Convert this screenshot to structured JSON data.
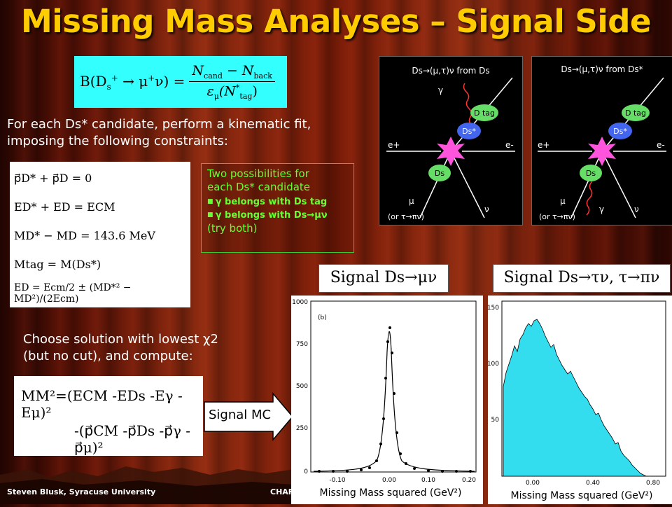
{
  "slide": {
    "title": "Missing Mass Analyses – Signal Side",
    "intro_line1": "For each Ds* candidate, perform a kinematic fit,",
    "intro_line2": "imposing the following constraints:",
    "choose_line1": "Choose solution with lowest χ2",
    "choose_line2": "(but no cut), and compute:",
    "signal_mc_label": "Signal MC",
    "footer_left": "Steven Blusk, Syracuse University",
    "footer_mid": "CHAF"
  },
  "branching_formula": {
    "lhs": "B(D",
    "lhs_tail": "→ μ",
    "numerator": "N",
    "numerator_sub1": "cand",
    "numerator_minus": " − N",
    "numerator_sub2": "back",
    "denominator": "ε",
    "denominator_sub": "μ",
    "denominator_tail": "(N",
    "denominator_tail_sub": "tag"
  },
  "constraints": {
    "lines": [
      "p⃗D* + p⃗D = 0",
      "ED* + ED = ECM",
      "MD* − MD = 143.6 MeV",
      "Mtag = M(Ds*)",
      "ED = Ecm/2 ± (MD*² − MD²)/(2Ecm)"
    ]
  },
  "possibilities": {
    "line1": "Two possibilities for",
    "line2": "each Ds* candidate",
    "items": [
      "γ belongs with Ds tag",
      "γ belongs with Ds→μν"
    ],
    "footnote": "(try both)"
  },
  "missing_mass": {
    "line1": "MM²=(ECM -EDs -Eγ -Eμ)²",
    "line2": "-(p⃗CM -p⃗Ds -p⃗γ -p⃗μ)²"
  },
  "diagrams": [
    {
      "title": "Ds→(μ,τ)ν from Ds",
      "gamma_side": "top"
    },
    {
      "title": "Ds→(μ,τ)ν from Ds*",
      "gamma_side": "bottom"
    }
  ],
  "diagram_labels": {
    "dtag": "D tag",
    "dsstar": "Ds*",
    "ds": "Ds",
    "eplus": "e+",
    "eminus": "e-",
    "gamma": "γ",
    "mu": "μ",
    "nu": "ν",
    "or_tau": "(or τ→πν)"
  },
  "signal_labels": {
    "sig1": "Signal Ds→μν",
    "sig2": "Signal Ds→τν, τ→πν"
  },
  "plot1": {
    "panel": "(b)",
    "xlabel": "Missing Mass squared (GeV²)",
    "yticks": [
      "1000",
      "750",
      "500",
      "250",
      "0"
    ],
    "xticks": [
      "-0.10",
      "0.00",
      "0.10",
      "0.20"
    ]
  },
  "plot2": {
    "xlabel": "Missing Mass squared (GeV²)",
    "yticks": [
      "150",
      "100",
      "50"
    ],
    "xticks": [
      "0.00",
      "0.40",
      "0.80"
    ]
  },
  "colors": {
    "title": "#ffcc00",
    "formula_bg": "#33ffff",
    "possibility_text": "#66ff33",
    "histogram_fill": "#33ddee"
  }
}
